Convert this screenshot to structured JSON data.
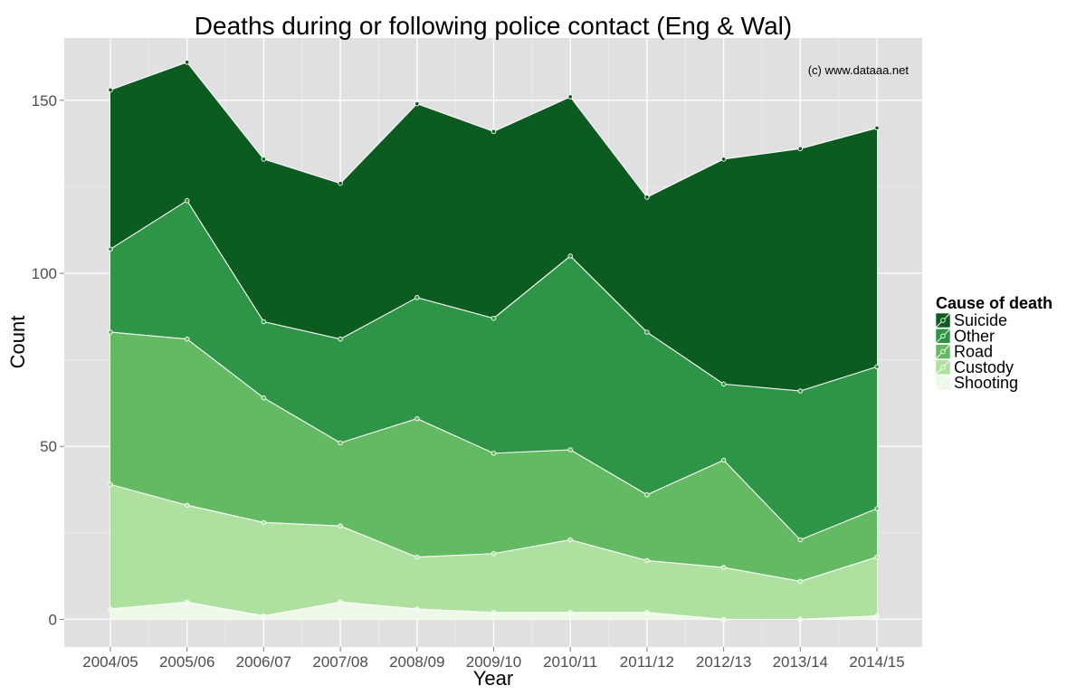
{
  "chart_data": {
    "type": "area",
    "stacked": true,
    "title": "Deaths during or following police contact (Eng & Wal)",
    "xlabel": "Year",
    "ylabel": "Count",
    "credit": "(c) www.dataaa.net",
    "categories": [
      "2004/05",
      "2005/06",
      "2006/07",
      "2007/08",
      "2008/09",
      "2009/10",
      "2010/11",
      "2011/12",
      "2012/13",
      "2013/14",
      "2014/15"
    ],
    "yticks": [
      0,
      50,
      100,
      150
    ],
    "ylim": [
      -8,
      168
    ],
    "grid": true,
    "legend": {
      "title": "Cause of death",
      "position": "right"
    },
    "series": [
      {
        "name": "Shooting",
        "color": "#edf8e9",
        "values": [
          3,
          5,
          1,
          5,
          3,
          2,
          2,
          2,
          0,
          0,
          1
        ]
      },
      {
        "name": "Custody",
        "color": "#aee09f",
        "values": [
          36,
          28,
          27,
          22,
          15,
          17,
          21,
          15,
          15,
          11,
          17
        ]
      },
      {
        "name": "Road",
        "color": "#64ba63",
        "values": [
          44,
          48,
          36,
          24,
          40,
          29,
          26,
          19,
          31,
          12,
          14
        ]
      },
      {
        "name": "Other",
        "color": "#2e9446",
        "values": [
          24,
          40,
          22,
          30,
          35,
          39,
          56,
          47,
          22,
          43,
          41
        ]
      },
      {
        "name": "Suicide",
        "color": "#0c5b21",
        "values": [
          46,
          40,
          47,
          45,
          56,
          54,
          46,
          39,
          65,
          70,
          69
        ]
      }
    ]
  }
}
